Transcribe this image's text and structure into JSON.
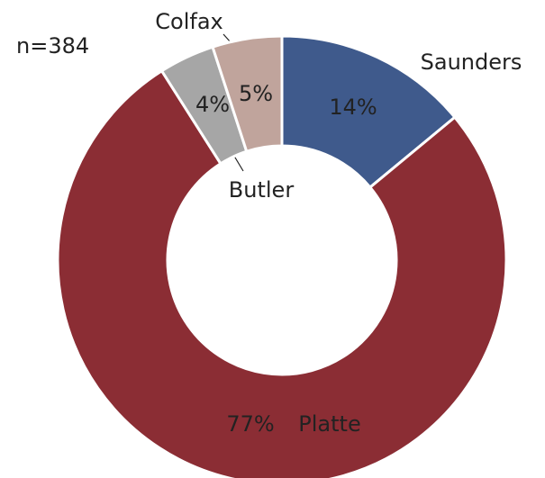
{
  "chart_data": {
    "type": "donut",
    "annotation": "n=384",
    "categories": [
      "Saunders",
      "Platte",
      "Butler",
      "Colfax"
    ],
    "values": [
      14,
      77,
      4,
      5
    ],
    "value_labels": [
      "14%",
      "77%",
      "4%",
      "5%"
    ],
    "colors": [
      "#3f5a8c",
      "#8b2d34",
      "#a6a6a6",
      "#c0a49c"
    ]
  }
}
